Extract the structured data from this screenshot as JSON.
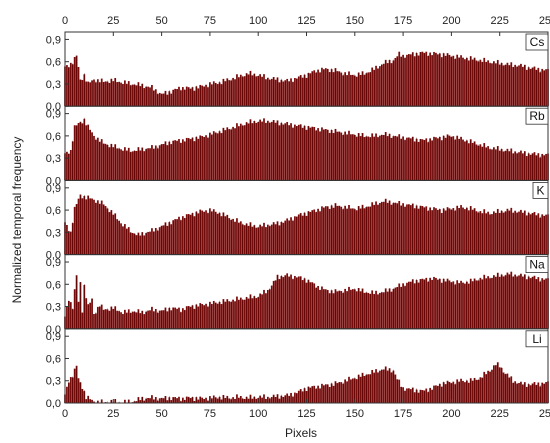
{
  "chart_data": {
    "type": "bar",
    "xlabel": "Pixels",
    "ylabel": "Normalized temporal frequency",
    "xlim": [
      0,
      250
    ],
    "ylim": [
      0,
      1.0
    ],
    "x_ticks": [
      "0",
      "25",
      "50",
      "75",
      "100",
      "125",
      "150",
      "175",
      "200",
      "225",
      "250"
    ],
    "y_ticks": [
      "0,0",
      "0,3",
      "0,6",
      "0,9"
    ],
    "bar_color": "#7a0b0b",
    "panels": [
      {
        "name": "Cs",
        "profile": [
          [
            0,
            0.52
          ],
          [
            2,
            0.55
          ],
          [
            4,
            0.6
          ],
          [
            6,
            0.68
          ],
          [
            8,
            0.35
          ],
          [
            10,
            0.42
          ],
          [
            12,
            0.3
          ],
          [
            15,
            0.36
          ],
          [
            20,
            0.33
          ],
          [
            25,
            0.35
          ],
          [
            30,
            0.32
          ],
          [
            35,
            0.3
          ],
          [
            40,
            0.28
          ],
          [
            45,
            0.25
          ],
          [
            50,
            0.16
          ],
          [
            55,
            0.2
          ],
          [
            60,
            0.25
          ],
          [
            65,
            0.24
          ],
          [
            70,
            0.26
          ],
          [
            75,
            0.3
          ],
          [
            80,
            0.32
          ],
          [
            85,
            0.36
          ],
          [
            90,
            0.4
          ],
          [
            95,
            0.44
          ],
          [
            100,
            0.42
          ],
          [
            105,
            0.38
          ],
          [
            110,
            0.36
          ],
          [
            115,
            0.34
          ],
          [
            120,
            0.38
          ],
          [
            125,
            0.42
          ],
          [
            130,
            0.48
          ],
          [
            135,
            0.5
          ],
          [
            140,
            0.48
          ],
          [
            145,
            0.44
          ],
          [
            150,
            0.42
          ],
          [
            155,
            0.44
          ],
          [
            160,
            0.5
          ],
          [
            165,
            0.58
          ],
          [
            170,
            0.62
          ],
          [
            173,
            0.7
          ],
          [
            175,
            0.68
          ],
          [
            180,
            0.7
          ],
          [
            185,
            0.72
          ],
          [
            190,
            0.71
          ],
          [
            195,
            0.7
          ],
          [
            200,
            0.68
          ],
          [
            205,
            0.66
          ],
          [
            210,
            0.64
          ],
          [
            215,
            0.62
          ],
          [
            220,
            0.6
          ],
          [
            225,
            0.58
          ],
          [
            230,
            0.56
          ],
          [
            235,
            0.55
          ],
          [
            240,
            0.52
          ],
          [
            245,
            0.5
          ],
          [
            250,
            0.48
          ]
        ]
      },
      {
        "name": "Rb",
        "profile": [
          [
            0,
            0.35
          ],
          [
            3,
            0.4
          ],
          [
            5,
            0.72
          ],
          [
            8,
            0.78
          ],
          [
            10,
            0.82
          ],
          [
            12,
            0.72
          ],
          [
            15,
            0.6
          ],
          [
            20,
            0.5
          ],
          [
            25,
            0.46
          ],
          [
            30,
            0.42
          ],
          [
            35,
            0.4
          ],
          [
            40,
            0.42
          ],
          [
            45,
            0.44
          ],
          [
            50,
            0.48
          ],
          [
            55,
            0.52
          ],
          [
            60,
            0.54
          ],
          [
            65,
            0.56
          ],
          [
            70,
            0.58
          ],
          [
            75,
            0.62
          ],
          [
            80,
            0.66
          ],
          [
            85,
            0.7
          ],
          [
            90,
            0.74
          ],
          [
            95,
            0.78
          ],
          [
            100,
            0.8
          ],
          [
            105,
            0.8
          ],
          [
            110,
            0.78
          ],
          [
            115,
            0.76
          ],
          [
            120,
            0.74
          ],
          [
            125,
            0.72
          ],
          [
            130,
            0.7
          ],
          [
            135,
            0.68
          ],
          [
            140,
            0.66
          ],
          [
            145,
            0.64
          ],
          [
            150,
            0.62
          ],
          [
            155,
            0.6
          ],
          [
            160,
            0.6
          ],
          [
            165,
            0.62
          ],
          [
            170,
            0.6
          ],
          [
            175,
            0.58
          ],
          [
            180,
            0.56
          ],
          [
            185,
            0.54
          ],
          [
            190,
            0.56
          ],
          [
            195,
            0.58
          ],
          [
            200,
            0.6
          ],
          [
            205,
            0.56
          ],
          [
            210,
            0.52
          ],
          [
            215,
            0.48
          ],
          [
            220,
            0.44
          ],
          [
            225,
            0.42
          ],
          [
            230,
            0.4
          ],
          [
            235,
            0.38
          ],
          [
            240,
            0.36
          ],
          [
            245,
            0.35
          ],
          [
            250,
            0.34
          ]
        ]
      },
      {
        "name": "K",
        "profile": [
          [
            0,
            0.42
          ],
          [
            3,
            0.3
          ],
          [
            5,
            0.62
          ],
          [
            8,
            0.8
          ],
          [
            10,
            0.78
          ],
          [
            15,
            0.74
          ],
          [
            20,
            0.68
          ],
          [
            25,
            0.55
          ],
          [
            30,
            0.4
          ],
          [
            35,
            0.3
          ],
          [
            38,
            0.26
          ],
          [
            40,
            0.28
          ],
          [
            45,
            0.32
          ],
          [
            50,
            0.38
          ],
          [
            55,
            0.44
          ],
          [
            60,
            0.5
          ],
          [
            65,
            0.54
          ],
          [
            70,
            0.58
          ],
          [
            75,
            0.6
          ],
          [
            80,
            0.56
          ],
          [
            85,
            0.5
          ],
          [
            90,
            0.44
          ],
          [
            95,
            0.4
          ],
          [
            100,
            0.38
          ],
          [
            105,
            0.4
          ],
          [
            110,
            0.42
          ],
          [
            115,
            0.46
          ],
          [
            120,
            0.52
          ],
          [
            125,
            0.56
          ],
          [
            130,
            0.6
          ],
          [
            135,
            0.64
          ],
          [
            140,
            0.66
          ],
          [
            145,
            0.64
          ],
          [
            150,
            0.62
          ],
          [
            155,
            0.64
          ],
          [
            160,
            0.68
          ],
          [
            165,
            0.72
          ],
          [
            170,
            0.7
          ],
          [
            175,
            0.68
          ],
          [
            180,
            0.66
          ],
          [
            185,
            0.64
          ],
          [
            190,
            0.62
          ],
          [
            195,
            0.6
          ],
          [
            200,
            0.62
          ],
          [
            205,
            0.64
          ],
          [
            210,
            0.62
          ],
          [
            215,
            0.58
          ],
          [
            220,
            0.56
          ],
          [
            225,
            0.58
          ],
          [
            230,
            0.6
          ],
          [
            235,
            0.58
          ],
          [
            240,
            0.56
          ],
          [
            245,
            0.54
          ],
          [
            250,
            0.52
          ]
        ]
      },
      {
        "name": "Na",
        "profile": [
          [
            0,
            0.15
          ],
          [
            2,
            0.4
          ],
          [
            4,
            0.3
          ],
          [
            6,
            0.72
          ],
          [
            7,
            0.35
          ],
          [
            8,
            0.62
          ],
          [
            9,
            0.25
          ],
          [
            10,
            0.58
          ],
          [
            12,
            0.3
          ],
          [
            14,
            0.4
          ],
          [
            15,
            0.2
          ],
          [
            18,
            0.32
          ],
          [
            20,
            0.26
          ],
          [
            25,
            0.28
          ],
          [
            30,
            0.22
          ],
          [
            35,
            0.24
          ],
          [
            40,
            0.22
          ],
          [
            45,
            0.26
          ],
          [
            50,
            0.24
          ],
          [
            55,
            0.28
          ],
          [
            60,
            0.26
          ],
          [
            65,
            0.3
          ],
          [
            70,
            0.32
          ],
          [
            75,
            0.34
          ],
          [
            80,
            0.36
          ],
          [
            85,
            0.38
          ],
          [
            90,
            0.4
          ],
          [
            95,
            0.42
          ],
          [
            100,
            0.44
          ],
          [
            105,
            0.52
          ],
          [
            108,
            0.62
          ],
          [
            110,
            0.7
          ],
          [
            115,
            0.72
          ],
          [
            120,
            0.7
          ],
          [
            125,
            0.66
          ],
          [
            130,
            0.58
          ],
          [
            135,
            0.52
          ],
          [
            140,
            0.5
          ],
          [
            145,
            0.52
          ],
          [
            150,
            0.54
          ],
          [
            155,
            0.5
          ],
          [
            160,
            0.48
          ],
          [
            165,
            0.5
          ],
          [
            170,
            0.54
          ],
          [
            175,
            0.6
          ],
          [
            180,
            0.64
          ],
          [
            185,
            0.66
          ],
          [
            190,
            0.68
          ],
          [
            195,
            0.66
          ],
          [
            200,
            0.64
          ],
          [
            205,
            0.62
          ],
          [
            210,
            0.64
          ],
          [
            215,
            0.68
          ],
          [
            220,
            0.7
          ],
          [
            225,
            0.72
          ],
          [
            230,
            0.74
          ],
          [
            235,
            0.72
          ],
          [
            240,
            0.7
          ],
          [
            245,
            0.68
          ],
          [
            250,
            0.66
          ]
        ]
      },
      {
        "name": "Li",
        "profile": [
          [
            0,
            0.1
          ],
          [
            2,
            0.3
          ],
          [
            4,
            0.38
          ],
          [
            6,
            0.5
          ],
          [
            7,
            0.32
          ],
          [
            9,
            0.22
          ],
          [
            11,
            0.08
          ],
          [
            15,
            0.02
          ],
          [
            20,
            0.01
          ],
          [
            25,
            0.02
          ],
          [
            30,
            0.01
          ],
          [
            35,
            0.02
          ],
          [
            40,
            0.06
          ],
          [
            45,
            0.07
          ],
          [
            50,
            0.06
          ],
          [
            55,
            0.07
          ],
          [
            60,
            0.06
          ],
          [
            65,
            0.07
          ],
          [
            70,
            0.06
          ],
          [
            75,
            0.07
          ],
          [
            80,
            0.08
          ],
          [
            85,
            0.07
          ],
          [
            90,
            0.08
          ],
          [
            95,
            0.07
          ],
          [
            100,
            0.08
          ],
          [
            105,
            0.08
          ],
          [
            110,
            0.09
          ],
          [
            115,
            0.1
          ],
          [
            120,
            0.14
          ],
          [
            125,
            0.2
          ],
          [
            130,
            0.22
          ],
          [
            135,
            0.24
          ],
          [
            140,
            0.26
          ],
          [
            145,
            0.3
          ],
          [
            150,
            0.34
          ],
          [
            155,
            0.38
          ],
          [
            160,
            0.42
          ],
          [
            165,
            0.46
          ],
          [
            170,
            0.44
          ],
          [
            172,
            0.32
          ],
          [
            175,
            0.2
          ],
          [
            180,
            0.18
          ],
          [
            185,
            0.16
          ],
          [
            190,
            0.2
          ],
          [
            195,
            0.26
          ],
          [
            200,
            0.28
          ],
          [
            205,
            0.3
          ],
          [
            210,
            0.3
          ],
          [
            215,
            0.34
          ],
          [
            220,
            0.44
          ],
          [
            223,
            0.52
          ],
          [
            225,
            0.5
          ],
          [
            228,
            0.4
          ],
          [
            232,
            0.3
          ],
          [
            236,
            0.26
          ],
          [
            240,
            0.25
          ],
          [
            245,
            0.26
          ],
          [
            250,
            0.27
          ]
        ]
      }
    ]
  }
}
